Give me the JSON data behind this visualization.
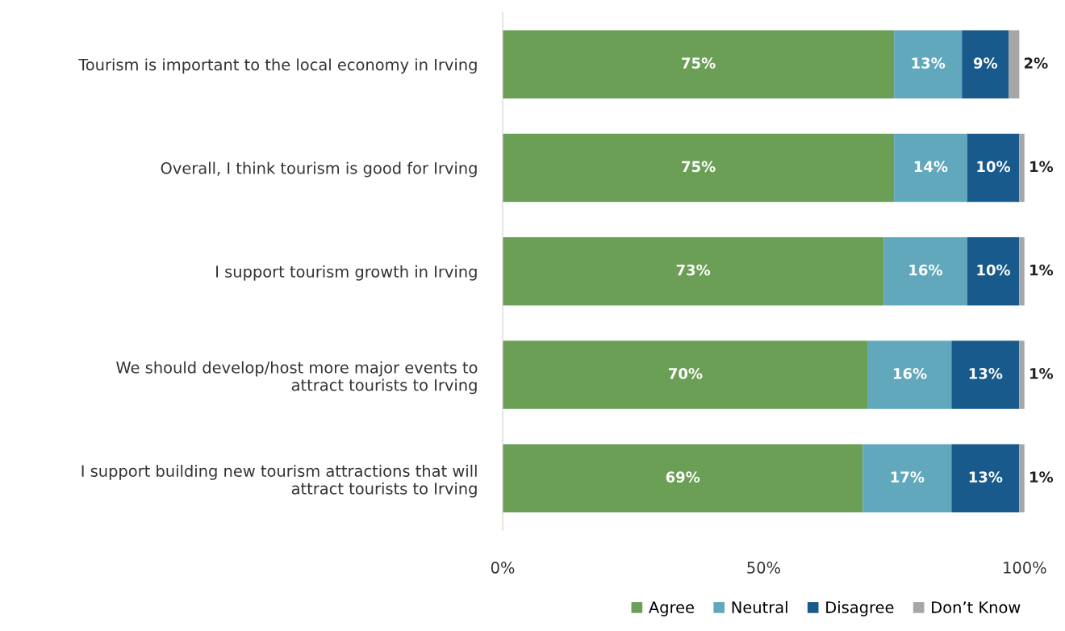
{
  "chart_data": {
    "type": "bar",
    "orientation": "horizontal",
    "stacked": true,
    "categories": [
      "Tourism is important to the local economy in Irving",
      "Overall, I think tourism is good for Irving",
      "I support tourism growth in Irving",
      "We should develop/host more major events to\nattract tourists to Irving",
      "I support building new tourism attractions that will\nattract tourists to Irving"
    ],
    "series": [
      {
        "name": "Agree",
        "color": "#6a9f55",
        "values": [
          75,
          75,
          73,
          70,
          69
        ],
        "value_labels": [
          "75%",
          "75%",
          "73%",
          "70%",
          "69%"
        ]
      },
      {
        "name": "Neutral",
        "color": "#62a8bc",
        "values": [
          13,
          14,
          16,
          16,
          17
        ],
        "value_labels": [
          "13%",
          "14%",
          "16%",
          "16%",
          "17%"
        ]
      },
      {
        "name": "Disagree",
        "color": "#175a8b",
        "values": [
          9,
          10,
          10,
          13,
          13
        ],
        "value_labels": [
          "9%",
          "10%",
          "10%",
          "13%",
          "13%"
        ]
      },
      {
        "name": "Don’t Know",
        "color": "#a6a6a6",
        "values": [
          2,
          1,
          1,
          1,
          1
        ],
        "value_labels": [
          "2%",
          "1%",
          "1%",
          "1%",
          "1%"
        ]
      }
    ],
    "xlim": [
      0,
      100
    ],
    "xticks": [
      {
        "value": 0,
        "label": "0%"
      },
      {
        "value": 50,
        "label": "50%"
      },
      {
        "value": 100,
        "label": "100%"
      }
    ],
    "grid": false,
    "legend": "bottom right"
  }
}
